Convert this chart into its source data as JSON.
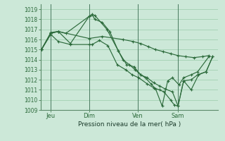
{
  "background_color": "#cce8d8",
  "grid_color": "#99ccaa",
  "line_color": "#2d6b3c",
  "xlabel": "Pression niveau de la mer( hPa )",
  "ylim": [
    1009,
    1019.5
  ],
  "yticks": [
    1009,
    1010,
    1011,
    1012,
    1013,
    1014,
    1015,
    1016,
    1017,
    1018,
    1019
  ],
  "xlim": [
    0,
    9.5
  ],
  "day_labels": [
    "Jeu",
    "Dim",
    "Ven",
    "Sam"
  ],
  "day_positions": [
    0.55,
    2.6,
    5.2,
    7.35
  ],
  "vline_positions": [
    0.55,
    2.6,
    5.2,
    7.35
  ],
  "series": [
    {
      "x": [
        0.05,
        0.55,
        0.95,
        1.35,
        2.6,
        2.75,
        2.9,
        3.3,
        3.7,
        4.15,
        4.4,
        4.75,
        5.05,
        5.35,
        5.6,
        5.9,
        6.15,
        6.5,
        6.8,
        7.05,
        7.4,
        7.65,
        8.05,
        8.4,
        9.0
      ],
      "y": [
        1015.0,
        1016.6,
        1016.8,
        1016.6,
        1018.3,
        1018.5,
        1018.0,
        1017.7,
        1016.8,
        1014.9,
        1014.0,
        1013.5,
        1013.0,
        1012.5,
        1012.2,
        1011.6,
        1011.1,
        1009.4,
        1011.9,
        1012.2,
        1011.5,
        1012.2,
        1012.5,
        1012.8,
        1014.3
      ]
    },
    {
      "x": [
        0.05,
        0.55,
        0.95,
        2.6,
        3.3,
        4.4,
        4.95,
        5.35,
        5.75,
        6.15,
        6.55,
        6.95,
        7.35,
        7.75,
        8.2,
        8.65,
        9.0
      ],
      "y": [
        1015.0,
        1016.7,
        1016.8,
        1016.1,
        1016.3,
        1016.0,
        1015.8,
        1015.6,
        1015.3,
        1015.0,
        1014.8,
        1014.6,
        1014.4,
        1014.3,
        1014.2,
        1014.3,
        1014.4
      ]
    },
    {
      "x": [
        0.05,
        0.55,
        0.95,
        1.6,
        2.6,
        2.75,
        3.15,
        3.6,
        4.1,
        4.55,
        4.9,
        5.25,
        5.7,
        6.05,
        6.35,
        6.6,
        6.95,
        7.15,
        7.35,
        7.65,
        8.05,
        8.45,
        8.85,
        9.2
      ],
      "y": [
        1015.0,
        1016.5,
        1015.8,
        1015.5,
        1015.5,
        1015.5,
        1015.9,
        1015.4,
        1013.5,
        1013.0,
        1012.5,
        1012.2,
        1011.6,
        1011.2,
        1011.0,
        1010.8,
        1010.0,
        1009.5,
        1009.4,
        1011.9,
        1011.0,
        1012.5,
        1012.8,
        1014.3
      ]
    },
    {
      "x": [
        0.05,
        0.55,
        0.95,
        1.6,
        2.6,
        2.9,
        3.55,
        4.15,
        4.6,
        5.0,
        5.35,
        5.7,
        6.05,
        6.35,
        6.65,
        7.05,
        7.35,
        7.65,
        8.05,
        8.4,
        8.85,
        9.2
      ],
      "y": [
        1015.0,
        1016.6,
        1016.8,
        1015.6,
        1018.3,
        1018.4,
        1017.0,
        1014.9,
        1013.5,
        1013.3,
        1012.5,
        1012.2,
        1011.7,
        1011.4,
        1011.1,
        1010.8,
        1009.4,
        1011.9,
        1012.0,
        1012.5,
        1012.8,
        1014.3
      ]
    }
  ]
}
